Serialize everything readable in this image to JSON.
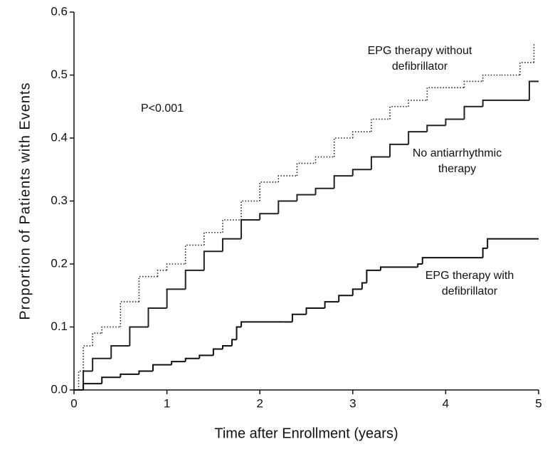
{
  "chart_data": {
    "type": "line",
    "step": true,
    "y_label": "Proportion of Patients with Events",
    "x_label": "Time after Enrollment (years)",
    "annotation": "P<0.001",
    "xlim": [
      0,
      5
    ],
    "xticks": [
      0,
      1,
      2,
      3,
      4,
      5
    ],
    "ylim": [
      0,
      0.6
    ],
    "yticks": [
      {
        "value": 0,
        "label": "0.0"
      },
      0.1,
      0.2,
      0.3,
      0.4,
      0.5,
      0.6
    ],
    "series": [
      {
        "name": "EPG therapy without defibrillator",
        "color": "#222",
        "style": "dotted",
        "x": [
          0,
          0.05,
          0.1,
          0.2,
          0.3,
          0.5,
          0.7,
          0.9,
          1.0,
          1.2,
          1.4,
          1.6,
          1.8,
          2.0,
          2.2,
          2.4,
          2.6,
          2.8,
          3.0,
          3.2,
          3.4,
          3.6,
          3.8,
          4.0,
          4.2,
          4.4,
          4.6,
          4.8,
          4.95
        ],
        "values": [
          0,
          0.03,
          0.07,
          0.09,
          0.1,
          0.14,
          0.18,
          0.19,
          0.2,
          0.23,
          0.25,
          0.27,
          0.3,
          0.33,
          0.34,
          0.36,
          0.37,
          0.4,
          0.41,
          0.43,
          0.45,
          0.46,
          0.48,
          0.48,
          0.49,
          0.5,
          0.5,
          0.52,
          0.55
        ]
      },
      {
        "name": "No antiarrhythmic therapy",
        "color": "#222",
        "style": "solid",
        "x": [
          0,
          0.1,
          0.2,
          0.4,
          0.6,
          0.8,
          1.0,
          1.2,
          1.4,
          1.6,
          1.8,
          2.0,
          2.2,
          2.4,
          2.6,
          2.8,
          3.0,
          3.2,
          3.4,
          3.6,
          3.8,
          4.0,
          4.2,
          4.4,
          4.7,
          4.9,
          5.0
        ],
        "values": [
          0,
          0.03,
          0.05,
          0.07,
          0.1,
          0.13,
          0.16,
          0.19,
          0.22,
          0.24,
          0.27,
          0.28,
          0.3,
          0.31,
          0.32,
          0.34,
          0.35,
          0.37,
          0.39,
          0.41,
          0.42,
          0.43,
          0.45,
          0.46,
          0.46,
          0.49,
          0.49
        ]
      },
      {
        "name": "EPG therapy with defibrillator",
        "color": "#111",
        "style": "solid",
        "x": [
          0,
          0.1,
          0.3,
          0.5,
          0.7,
          0.85,
          1.05,
          1.2,
          1.35,
          1.5,
          1.6,
          1.7,
          1.75,
          1.8,
          2.25,
          2.35,
          2.5,
          2.7,
          2.85,
          3.0,
          3.1,
          3.15,
          3.3,
          3.7,
          3.75,
          4.35,
          4.4,
          4.45,
          5.0
        ],
        "values": [
          0,
          0.01,
          0.02,
          0.025,
          0.03,
          0.04,
          0.045,
          0.05,
          0.055,
          0.065,
          0.07,
          0.08,
          0.1,
          0.108,
          0.108,
          0.12,
          0.13,
          0.14,
          0.15,
          0.16,
          0.17,
          0.19,
          0.195,
          0.2,
          0.21,
          0.21,
          0.225,
          0.24,
          0.24
        ]
      }
    ]
  }
}
